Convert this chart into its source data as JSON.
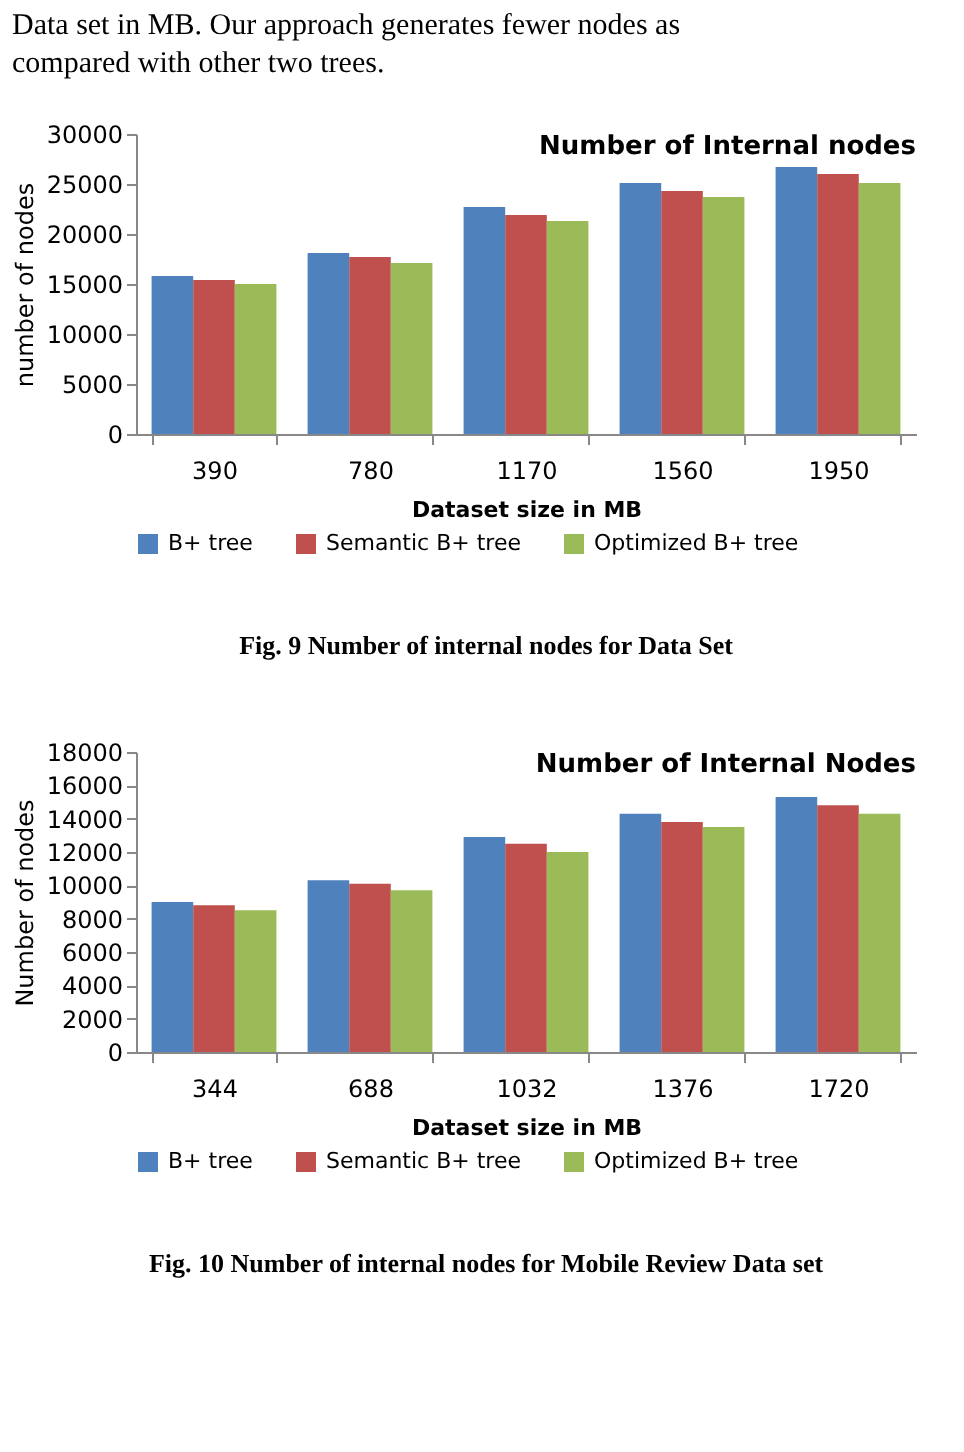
{
  "chart_data": [
    {
      "type": "bar",
      "title": "Number of Internal nodes",
      "xlabel": "Dataset size in MB",
      "ylabel": "number of nodes",
      "categories": [
        "390",
        "780",
        "1170",
        "1560",
        "1950"
      ],
      "series": [
        {
          "name": "B+ tree",
          "color": "#4f81bd",
          "values": [
            15800,
            18100,
            22700,
            25100,
            26700
          ]
        },
        {
          "name": "Semantic B+ tree",
          "color": "#c0504d",
          "values": [
            15400,
            17700,
            21900,
            24300,
            26000
          ]
        },
        {
          "name": "Optimized B+ tree",
          "color": "#9bbb59",
          "values": [
            15000,
            17100,
            21300,
            23700,
            25100
          ]
        }
      ],
      "ylim": [
        0,
        30000
      ],
      "yticks": [
        0,
        5000,
        10000,
        15000,
        20000,
        25000,
        30000
      ],
      "grid": false,
      "legend": "bottom",
      "annotations": [
        "Data set in MB. Our approach generates fewer nodes as compared with other two trees.",
        "Fig. 9 Number of internal nodes for Data Set"
      ]
    },
    {
      "type": "bar",
      "title": "Number of Internal Nodes",
      "xlabel": "Dataset size in MB",
      "ylabel": "Number of nodes",
      "categories": [
        "344",
        "688",
        "1032",
        "1376",
        "1720"
      ],
      "series": [
        {
          "name": "B+ tree",
          "color": "#4f81bd",
          "values": [
            9000,
            10300,
            12900,
            14300,
            15300
          ]
        },
        {
          "name": "Semantic B+ tree",
          "color": "#c0504d",
          "values": [
            8800,
            10100,
            12500,
            13800,
            14800
          ]
        },
        {
          "name": "Optimized B+ tree",
          "color": "#9bbb59",
          "values": [
            8500,
            9700,
            12000,
            13500,
            14300
          ]
        }
      ],
      "ylim": [
        0,
        18000
      ],
      "yticks": [
        0,
        2000,
        4000,
        6000,
        8000,
        10000,
        12000,
        14000,
        16000,
        18000
      ],
      "grid": false,
      "legend": "bottom",
      "annotations": [
        "Fig. 10 Number of internal nodes for Mobile Review Data set"
      ]
    }
  ]
}
